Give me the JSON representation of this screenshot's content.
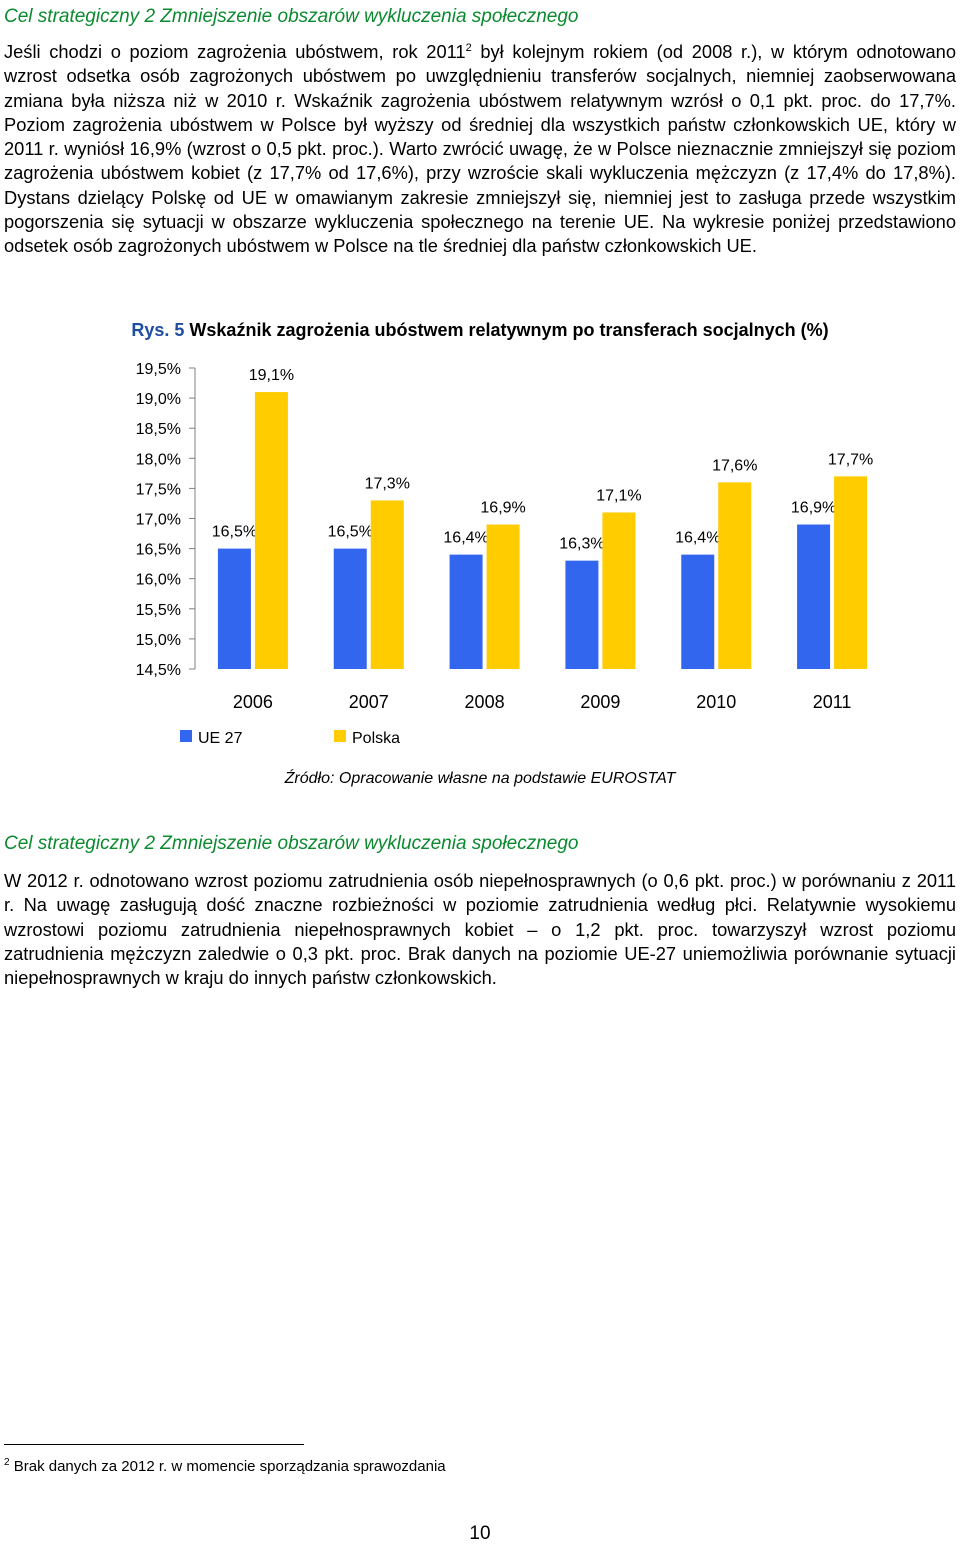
{
  "section1": {
    "heading": "Cel strategiczny 2 Zmniejszenie obszarów wykluczenia społecznego",
    "para_a": "Jeśli chodzi o poziom zagrożenia ubóstwem, rok 2011",
    "para_sup": "2",
    "para_b": " był kolejnym rokiem (od 2008 r.), w którym odnotowano wzrost odsetka osób zagrożonych ubóstwem po uwzględnieniu transferów socjalnych, niemniej zaobserwowana zmiana była niższa niż w 2010 r. Wskaźnik zagrożenia ubóstwem relatywnym wzrósł o 0,1 pkt. proc. do 17,7%. Poziom zagrożenia ubóstwem w Polsce był wyższy od średniej dla wszystkich państw członkowskich UE, który w 2011 r. wyniósł 16,9% (wzrost o 0,5 pkt. proc.). Warto zwrócić uwagę, że w Polsce nieznacznie zmniejszył się poziom zagrożenia ubóstwem kobiet (z 17,7% od 17,6%), przy wzroście skali wykluczenia mężczyzn (z 17,4% do 17,8%). Dystans dzielący Polskę od UE w omawianym zakresie zmniejszył się, niemniej jest to zasługa przede wszystkim pogorszenia się sytuacji w obszarze wykluczenia społecznego na terenie UE. Na wykresie poniżej przedstawiono odsetek osób zagrożonych ubóstwem w Polsce na tle średniej dla państw członkowskich UE."
  },
  "figure": {
    "caption_label": "Rys. 5",
    "caption_text": " Wskaźnik zagrożenia ubóstwem relatywnym po transferach socjalnych (%)",
    "source": "Źródło: Opracowanie własne na podstawie EUROSTAT"
  },
  "chart_data": {
    "type": "bar",
    "categories": [
      "2006",
      "2007",
      "2008",
      "2009",
      "2010",
      "2011"
    ],
    "series": [
      {
        "name": "UE 27",
        "color": "#3366ee",
        "values": [
          16.5,
          16.5,
          16.4,
          16.3,
          16.4,
          16.9
        ],
        "labels": [
          "16,5%",
          "16,5%",
          "16,4%",
          "16,3%",
          "16,4%",
          "16,9%"
        ]
      },
      {
        "name": "Polska",
        "color": "#ffcc00",
        "values": [
          19.1,
          17.3,
          16.9,
          17.1,
          17.6,
          17.7
        ],
        "labels": [
          "19,1%",
          "17,3%",
          "16,9%",
          "17,1%",
          "17,6%",
          "17,7%"
        ]
      }
    ],
    "yticks": [
      "14,5%",
      "15,0%",
      "15,5%",
      "16,0%",
      "16,5%",
      "17,0%",
      "17,5%",
      "18,0%",
      "18,5%",
      "19,0%",
      "19,5%"
    ],
    "ytick_values": [
      14.5,
      15.0,
      15.5,
      16.0,
      16.5,
      17.0,
      17.5,
      18.0,
      18.5,
      19.0,
      19.5
    ],
    "ylim": [
      14.5,
      19.5
    ],
    "grid": false,
    "legend": "bottom-left"
  },
  "section2": {
    "heading": "Cel strategiczny 2 Zmniejszenie obszarów wykluczenia społecznego",
    "para": "W 2012 r. odnotowano wzrost poziomu zatrudnienia osób niepełnosprawnych (o 0,6 pkt. proc.) w porównaniu z 2011 r. Na uwagę zasługują dość znaczne rozbieżności w poziomie zatrudnienia według płci. Relatywnie wysokiemu wzrostowi poziomu zatrudnienia niepełnosprawnych kobiet – o 1,2 pkt. proc. towarzyszył wzrost poziomu zatrudnienia mężczyzn zaledwie o 0,3 pkt. proc. Brak danych na poziomie UE-27 uniemożliwia porównanie sytuacji niepełnosprawnych w kraju do innych państw członkowskich."
  },
  "footnote": {
    "marker": "2",
    "text": " Brak danych za 2012 r. w momencie sporządzania sprawozdania"
  },
  "page_number": "10"
}
